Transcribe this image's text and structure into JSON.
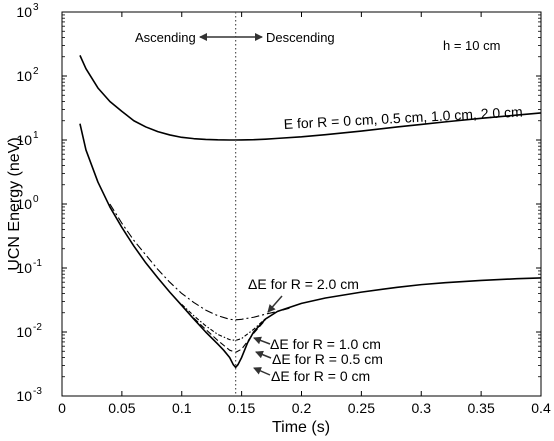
{
  "chart_data": {
    "type": "line",
    "title": "",
    "xlabel": "Time (s)",
    "ylabel": "UCN Energy (neV)",
    "xlim": [
      0,
      0.4
    ],
    "ylim": [
      0.001,
      1000
    ],
    "yscale": "log",
    "grid": false,
    "x_ticks": [
      "0",
      "0.05",
      "0.1",
      "0.15",
      "0.2",
      "0.25",
      "0.3",
      "0.35",
      "0.4"
    ],
    "y_tick_exponents": [
      "-3",
      "-2",
      "-1",
      "0",
      "1",
      "2",
      "3"
    ],
    "y_tick_base": "10",
    "vline_x": 0.145,
    "annotations": {
      "ascending": "Ascending",
      "descending": "Descending",
      "height": "h = 10 cm",
      "energy_label": "E for R = 0 cm, 0.5 cm, 1.0 cm, 2.0 cm",
      "de_r20": "ΔE for R = 2.0 cm",
      "de_r10": "ΔE for R = 1.0 cm",
      "de_r05": "ΔE for R = 0.5 cm",
      "de_r0": "ΔE for R = 0 cm"
    },
    "series": [
      {
        "group": "E",
        "style": "solid",
        "x": [
          0.015,
          0.02,
          0.03,
          0.04,
          0.05,
          0.06,
          0.07,
          0.08,
          0.09,
          0.1,
          0.11,
          0.12,
          0.13,
          0.14,
          0.145,
          0.15,
          0.16,
          0.17,
          0.18,
          0.2,
          0.22,
          0.25,
          0.28,
          0.3,
          0.32,
          0.35,
          0.38,
          0.4
        ],
        "values": [
          210,
          130,
          65,
          40,
          28,
          20,
          16,
          13.5,
          12,
          11,
          10.5,
          10.2,
          10.05,
          10,
          10,
          10.02,
          10.1,
          10.3,
          10.6,
          11.2,
          12.1,
          13.8,
          16,
          17.5,
          19.2,
          21.8,
          24.5,
          26.5
        ]
      },
      {
        "group": "dE",
        "style": "solid",
        "x": [
          0.015,
          0.02,
          0.03,
          0.04,
          0.05,
          0.06,
          0.07,
          0.08,
          0.09,
          0.1,
          0.11,
          0.12,
          0.13,
          0.135,
          0.14,
          0.143,
          0.145,
          0.147,
          0.15,
          0.155,
          0.16,
          0.17,
          0.18,
          0.2,
          0.22,
          0.25,
          0.28,
          0.3,
          0.32,
          0.35,
          0.38,
          0.4
        ],
        "values": [
          18,
          7,
          2.2,
          0.9,
          0.43,
          0.22,
          0.12,
          0.07,
          0.042,
          0.026,
          0.016,
          0.01,
          0.0065,
          0.0052,
          0.004,
          0.0031,
          0.0028,
          0.0031,
          0.004,
          0.0068,
          0.01,
          0.016,
          0.021,
          0.028,
          0.034,
          0.042,
          0.05,
          0.055,
          0.059,
          0.064,
          0.068,
          0.07
        ]
      },
      {
        "group": "dE",
        "style": "dash",
        "x": [
          0.11,
          0.12,
          0.13,
          0.14,
          0.145,
          0.15,
          0.16,
          0.17
        ],
        "values": [
          0.0165,
          0.011,
          0.0074,
          0.0052,
          0.0048,
          0.0054,
          0.0095,
          0.0155
        ]
      },
      {
        "group": "dE",
        "style": "dashdot-fine",
        "x": [
          0.1,
          0.11,
          0.12,
          0.13,
          0.14,
          0.145,
          0.15,
          0.16,
          0.17
        ],
        "values": [
          0.027,
          0.018,
          0.0125,
          0.0092,
          0.0076,
          0.0074,
          0.0079,
          0.011,
          0.0162
        ]
      },
      {
        "group": "dE",
        "style": "dashdot",
        "x": [
          0.04,
          0.05,
          0.06,
          0.07,
          0.08,
          0.09,
          0.1,
          0.11,
          0.12,
          0.13,
          0.14,
          0.145,
          0.15,
          0.16,
          0.17,
          0.18,
          0.19
        ],
        "values": [
          1.0,
          0.5,
          0.27,
          0.16,
          0.095,
          0.06,
          0.04,
          0.029,
          0.022,
          0.018,
          0.0158,
          0.0155,
          0.0158,
          0.017,
          0.019,
          0.021,
          0.0235
        ]
      }
    ]
  }
}
